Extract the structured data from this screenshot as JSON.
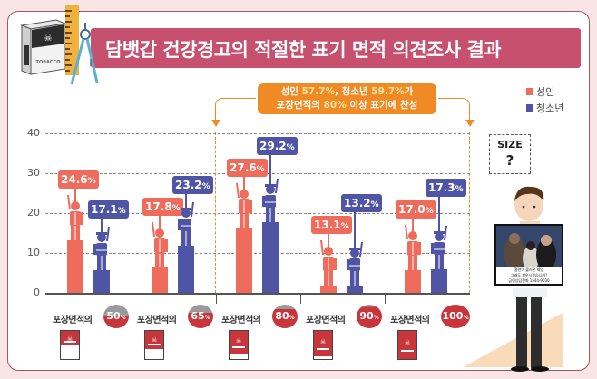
{
  "header": {
    "title": "담뱃갑 건강경고의 적절한 표기 면적 의견조사 결과"
  },
  "callout": {
    "line1_a": "성인 ",
    "line1_b": "57.7%",
    "line1_c": ", 청소년 ",
    "line1_d": "59.7%",
    "line1_e": "가",
    "line2_a": "포장면적의 ",
    "line2_b": "80%",
    "line2_c": " 이상 표기에 찬성"
  },
  "legend": [
    {
      "label": "성인",
      "color": "#ef6b5b"
    },
    {
      "label": "청소년",
      "color": "#4f55a4"
    }
  ],
  "colors": {
    "adult": "#ef6b5b",
    "youth": "#4f55a4",
    "title_bar": "#c8506f",
    "highlight": "#ef8a25",
    "pack_red": "#c8353b"
  },
  "illustration": {
    "thought_line1": "SIZE",
    "thought_line2": "?",
    "photo_caption_1": "흡연이 불러온 재앙",
    "photo_caption_2": "그래도 피우시겠습니까?",
    "photo_caption_3": "금연상담전화 1544-9030",
    "pack_brand": "TOBACCO",
    "skull": "☠"
  },
  "chart_data": {
    "type": "bar",
    "title": "담뱃갑 건강경고의 적절한 표기 면적 의견조사 결과",
    "xlabel": "",
    "ylabel": "",
    "ylim": [
      0,
      40
    ],
    "yticks": [
      0,
      10,
      20,
      30,
      40
    ],
    "grid": true,
    "legend_position": "top-right",
    "categories": [
      "포장면적의 50%",
      "포장면적의 65%",
      "포장면적의 80%",
      "포장면적의 90%",
      "포장면적의 100%"
    ],
    "category_prefix": "포장면적의",
    "category_pcts": [
      "50",
      "65",
      "80",
      "90",
      "100"
    ],
    "series": [
      {
        "name": "성인",
        "values": [
          24.6,
          17.8,
          27.6,
          13.1,
          17.0
        ],
        "labels": [
          "24.6",
          "17.8",
          "27.6",
          "13.1",
          "17.0"
        ]
      },
      {
        "name": "청소년",
        "values": [
          17.1,
          23.2,
          29.2,
          13.2,
          17.3
        ],
        "labels": [
          "17.1",
          "23.2",
          "29.2",
          "13.2",
          "17.3"
        ]
      }
    ],
    "annotation": "성인 57.7%, 청소년 59.7%가 포장면적의 80% 이상 표기에 찬성",
    "highlighted_categories": [
      "포장면적의 80%",
      "포장면적의 90%",
      "포장면적의 100%"
    ]
  },
  "pct_symbol": "%",
  "y_labels": [
    "40",
    "30",
    "20",
    "10",
    "0"
  ]
}
